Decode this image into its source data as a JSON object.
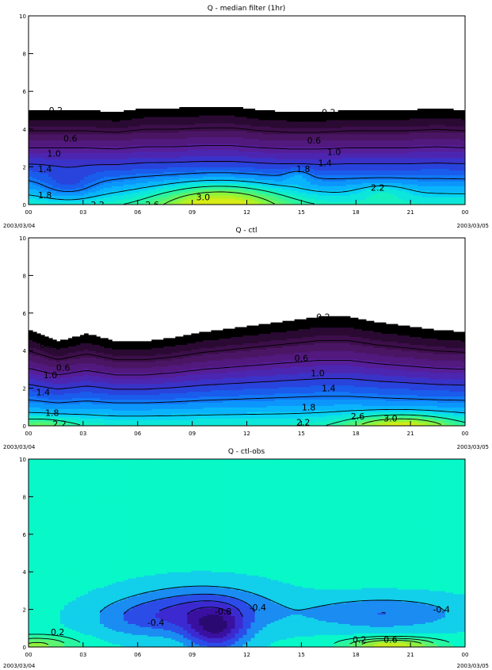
{
  "figure": {
    "x_start_label": "2003/03/04",
    "x_end_label": "2003/03/05"
  },
  "chart_data": [
    {
      "type": "contour",
      "title": "Q - median filter (1hr)",
      "xlabel": "",
      "ylabel": "",
      "x_ticks": [
        "00",
        "03",
        "06",
        "09",
        "12",
        "15",
        "18",
        "21",
        "00"
      ],
      "y_ticks": [
        "0",
        "2",
        "4",
        "6",
        "8",
        "10"
      ],
      "xlim": [
        0,
        24
      ],
      "ylim": [
        0,
        10
      ],
      "contour_labels": [
        {
          "text": "0.2",
          "x": 1.5,
          "y": 5.0
        },
        {
          "text": "0.2",
          "x": 16.5,
          "y": 4.9
        },
        {
          "text": "0.6",
          "x": 2.3,
          "y": 3.5
        },
        {
          "text": "0.6",
          "x": 15.7,
          "y": 3.4
        },
        {
          "text": "1.0",
          "x": 1.4,
          "y": 2.7
        },
        {
          "text": "1.0",
          "x": 16.8,
          "y": 2.8
        },
        {
          "text": "1.4",
          "x": 0.9,
          "y": 1.9
        },
        {
          "text": "1.4",
          "x": 16.3,
          "y": 2.2
        },
        {
          "text": "1.8",
          "x": 0.9,
          "y": 0.5
        },
        {
          "text": "1.8",
          "x": 15.1,
          "y": 1.9
        },
        {
          "text": "2.2",
          "x": 3.8,
          "y": 0.0
        },
        {
          "text": "2.2",
          "x": 19.2,
          "y": 0.9
        },
        {
          "text": "2.6",
          "x": 6.8,
          "y": 0.0
        },
        {
          "text": "3.0",
          "x": 9.6,
          "y": 0.4
        }
      ],
      "field": {
        "kind": "moisture",
        "top_height": [
          5.0,
          5.0,
          5.0,
          4.9,
          5.1,
          5.1,
          5.2,
          5.2,
          5.0,
          4.9,
          4.9,
          5.0,
          5.0,
          5.0,
          5.1,
          5.0
        ],
        "bumps": [
          {
            "x": 10.5,
            "z": 0.1,
            "sx": 3.5,
            "sz": 1.1,
            "a": 1.1
          },
          {
            "x": 14.8,
            "z": 1.5,
            "sx": 0.7,
            "sz": 0.4,
            "a": 0.3
          },
          {
            "x": 19.5,
            "z": 0.7,
            "sx": 1.5,
            "sz": 0.5,
            "a": 0.3
          },
          {
            "x": 2.2,
            "z": 1.0,
            "sx": 1.5,
            "sz": 0.8,
            "a": -0.4
          }
        ]
      }
    },
    {
      "type": "contour",
      "title": "Q - ctl",
      "xlabel": "",
      "ylabel": "",
      "x_ticks": [
        "00",
        "03",
        "06",
        "09",
        "12",
        "15",
        "18",
        "21",
        "00"
      ],
      "y_ticks": [
        "0",
        "2",
        "4",
        "6",
        "8",
        "10"
      ],
      "xlim": [
        0,
        24
      ],
      "ylim": [
        0,
        10
      ],
      "contour_labels": [
        {
          "text": "0.2",
          "x": 1.0,
          "y": 4.3
        },
        {
          "text": "0.2",
          "x": 16.2,
          "y": 5.8
        },
        {
          "text": "0.6",
          "x": 1.9,
          "y": 3.1
        },
        {
          "text": "0.6",
          "x": 15.0,
          "y": 3.6
        },
        {
          "text": "1.0",
          "x": 1.2,
          "y": 2.7
        },
        {
          "text": "1.0",
          "x": 15.9,
          "y": 2.8
        },
        {
          "text": "1.4",
          "x": 0.8,
          "y": 1.8
        },
        {
          "text": "1.4",
          "x": 16.5,
          "y": 2.0
        },
        {
          "text": "1.8",
          "x": 1.3,
          "y": 0.7
        },
        {
          "text": "1.8",
          "x": 15.4,
          "y": 1.0
        },
        {
          "text": "2.2",
          "x": 1.7,
          "y": 0.1
        },
        {
          "text": "2.2",
          "x": 15.1,
          "y": 0.2
        },
        {
          "text": "2.6",
          "x": 18.1,
          "y": 0.5
        },
        {
          "text": "3.0",
          "x": 19.9,
          "y": 0.4
        }
      ],
      "field": {
        "kind": "moisture",
        "top_height": [
          5.1,
          4.5,
          4.9,
          4.5,
          4.5,
          4.7,
          5.0,
          5.2,
          5.4,
          5.6,
          5.8,
          5.8,
          5.5,
          5.3,
          5.1,
          5.0
        ],
        "bumps": [
          {
            "x": 20.5,
            "z": 0.0,
            "sx": 2.8,
            "sz": 0.6,
            "a": 1.0
          },
          {
            "x": 0.5,
            "z": 0.0,
            "sx": 2.0,
            "sz": 0.5,
            "a": 0.5
          }
        ]
      }
    },
    {
      "type": "contour",
      "title": "Q - ctl-obs",
      "xlabel": "",
      "ylabel": "",
      "x_ticks": [
        "00",
        "03",
        "06",
        "09",
        "12",
        "15",
        "18",
        "21",
        "00"
      ],
      "y_ticks": [
        "0",
        "2",
        "4",
        "6",
        "8",
        "10"
      ],
      "xlim": [
        0,
        24
      ],
      "ylim": [
        0,
        10
      ],
      "contour_labels": [
        {
          "text": "0.2",
          "x": 1.6,
          "y": 0.8
        },
        {
          "text": "-0.4",
          "x": 7.0,
          "y": 1.3
        },
        {
          "text": "-0.8",
          "x": 10.7,
          "y": 1.9
        },
        {
          "text": "-0.4",
          "x": 12.6,
          "y": 2.1
        },
        {
          "text": "-0.4",
          "x": 22.7,
          "y": 2.0
        },
        {
          "text": "0.2",
          "x": 18.2,
          "y": 0.4
        },
        {
          "text": "0.6",
          "x": 19.9,
          "y": 0.4
        }
      ],
      "field": {
        "kind": "difference",
        "bumps": [
          {
            "x": 9.5,
            "z": 2.0,
            "sx": 4.0,
            "sz": 1.3,
            "a": -0.6
          },
          {
            "x": 10.3,
            "z": 0.9,
            "sx": 1.6,
            "sz": 1.1,
            "a": -0.8
          },
          {
            "x": 19.5,
            "z": 1.8,
            "sx": 4.5,
            "sz": 0.9,
            "a": -0.45
          },
          {
            "x": 6.0,
            "z": 1.5,
            "sx": 3.0,
            "sz": 1.0,
            "a": -0.3
          },
          {
            "x": 0.5,
            "z": 0.1,
            "sx": 2.2,
            "sz": 0.5,
            "a": 0.6
          },
          {
            "x": 20.0,
            "z": 0.1,
            "sx": 2.5,
            "sz": 0.4,
            "a": 0.9
          }
        ]
      }
    }
  ]
}
